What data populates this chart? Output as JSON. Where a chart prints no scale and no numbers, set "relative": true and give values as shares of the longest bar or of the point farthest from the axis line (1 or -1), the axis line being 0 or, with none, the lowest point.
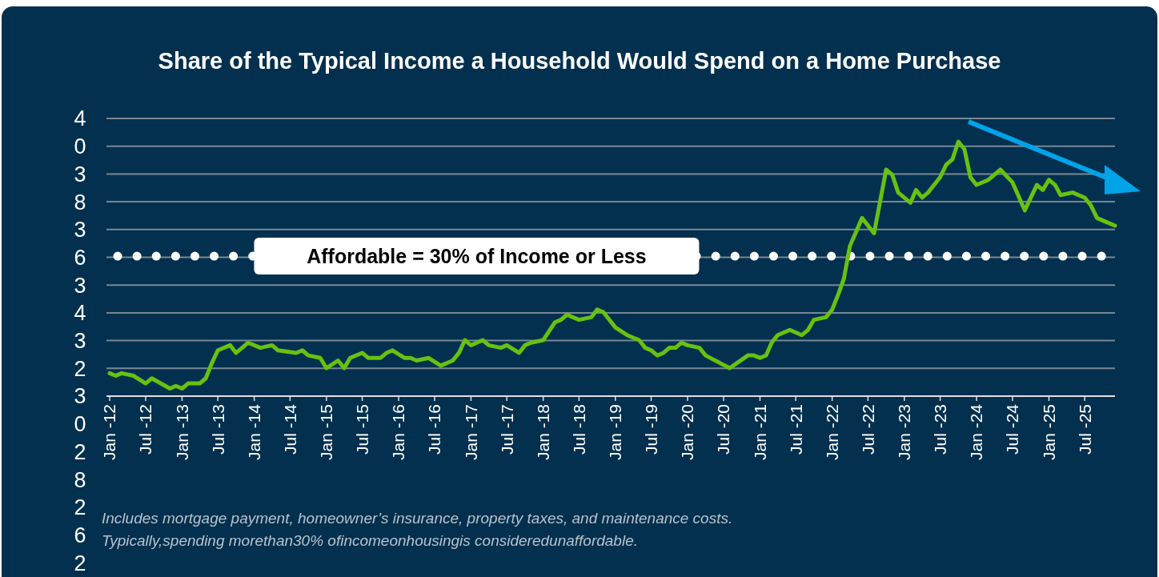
{
  "chart_data": {
    "type": "line",
    "title": "Share of the Typical Income a Household Would Spend on a Home Purchase",
    "x": [
      "2012-01",
      "2012-02",
      "2012-03",
      "2012-05",
      "2012-07",
      "2012-08",
      "2012-11",
      "2012-12",
      "2013-01",
      "2013-02",
      "2013-03",
      "2013-04",
      "2013-05",
      "2013-06",
      "2013-07",
      "2013-09",
      "2013-10",
      "2013-11",
      "2013-12",
      "2014-02",
      "2014-04",
      "2014-05",
      "2014-08",
      "2014-09",
      "2014-10",
      "2014-12",
      "2015-01",
      "2015-03",
      "2015-04",
      "2015-05",
      "2015-07",
      "2015-08",
      "2015-09",
      "2015-10",
      "2015-11",
      "2015-12",
      "2016-02",
      "2016-03",
      "2016-04",
      "2016-06",
      "2016-08",
      "2016-10",
      "2016-11",
      "2016-12",
      "2017-01",
      "2017-03",
      "2017-04",
      "2017-06",
      "2017-07",
      "2017-09",
      "2017-10",
      "2017-11",
      "2018-01",
      "2018-03",
      "2018-04",
      "2018-05",
      "2018-07",
      "2018-09",
      "2018-10",
      "2018-11",
      "2019-01",
      "2019-03",
      "2019-05",
      "2019-06",
      "2019-07",
      "2019-08",
      "2019-09",
      "2019-10",
      "2019-11",
      "2019-12",
      "2020-01",
      "2020-03",
      "2020-04",
      "2020-08",
      "2020-11",
      "2020-12",
      "2021-01",
      "2021-02",
      "2021-03",
      "2021-04",
      "2021-06",
      "2021-08",
      "2021-09",
      "2021-10",
      "2021-12",
      "2022-01",
      "2022-02",
      "2022-03",
      "2022-04",
      "2022-06",
      "2022-08",
      "2022-10",
      "2022-11",
      "2022-12",
      "2023-02",
      "2023-03",
      "2023-04",
      "2023-05",
      "2023-07",
      "2023-08",
      "2023-09",
      "2023-10",
      "2023-11",
      "2023-12",
      "2024-01",
      "2024-03",
      "2024-05",
      "2024-07",
      "2024-09",
      "2024-11",
      "2024-12",
      "2025-01",
      "2025-02",
      "2025-03",
      "2025-05",
      "2025-07",
      "2025-08",
      "2025-09",
      "2025-10",
      "2025-12"
    ],
    "relative": true,
    "series": [
      {
        "color": "#66c210",
        "values": [
          0.09,
          0.08,
          0.09,
          0.08,
          0.05,
          0.07,
          0.03,
          0.04,
          0.03,
          0.05,
          0.05,
          0.05,
          0.07,
          0.13,
          0.18,
          0.2,
          0.17,
          0.19,
          0.21,
          0.19,
          0.2,
          0.18,
          0.17,
          0.18,
          0.16,
          0.15,
          0.11,
          0.14,
          0.11,
          0.15,
          0.17,
          0.15,
          0.15,
          0.15,
          0.17,
          0.18,
          0.15,
          0.15,
          0.14,
          0.15,
          0.12,
          0.14,
          0.17,
          0.22,
          0.2,
          0.22,
          0.2,
          0.19,
          0.2,
          0.17,
          0.2,
          0.21,
          0.22,
          0.29,
          0.3,
          0.32,
          0.3,
          0.31,
          0.34,
          0.33,
          0.27,
          0.24,
          0.22,
          0.19,
          0.18,
          0.16,
          0.17,
          0.19,
          0.19,
          0.21,
          0.2,
          0.19,
          0.16,
          0.11,
          0.16,
          0.16,
          0.15,
          0.16,
          0.21,
          0.24,
          0.26,
          0.24,
          0.26,
          0.3,
          0.31,
          0.34,
          0.4,
          0.46,
          0.59,
          0.7,
          0.64,
          0.89,
          0.87,
          0.8,
          0.76,
          0.81,
          0.78,
          0.8,
          0.86,
          0.91,
          0.93,
          1,
          0.97,
          0.86,
          0.83,
          0.85,
          0.89,
          0.84,
          0.73,
          0.83,
          0.81,
          0.85,
          0.83,
          0.79,
          0.8,
          0.78,
          0.75,
          0.7,
          0.69,
          0.67
        ]
      }
    ],
    "xlim": [
      "2012-01",
      "2025-12"
    ],
    "xticks": [
      {
        "value": "2012-01",
        "label": "Jan -12"
      },
      {
        "value": "2012-07",
        "label": "Jul -12"
      },
      {
        "value": "2013-01",
        "label": "Jan -13"
      },
      {
        "value": "2013-07",
        "label": "Jul -13"
      },
      {
        "value": "2014-01",
        "label": "Jan -14"
      },
      {
        "value": "2014-07",
        "label": "Jul -14"
      },
      {
        "value": "2015-01",
        "label": "Jan -15"
      },
      {
        "value": "2015-07",
        "label": "Jul -15"
      },
      {
        "value": "2016-01",
        "label": "Jan -16"
      },
      {
        "value": "2016-07",
        "label": "Jul -16"
      },
      {
        "value": "2017-01",
        "label": "Jan -17"
      },
      {
        "value": "2017-07",
        "label": "Jul -17"
      },
      {
        "value": "2018-01",
        "label": "Jan -18"
      },
      {
        "value": "2018-07",
        "label": "Jul -18"
      },
      {
        "value": "2019-01",
        "label": "Jan -19"
      },
      {
        "value": "2019-07",
        "label": "Jul -19"
      },
      {
        "value": "2020-01",
        "label": "Jan -20"
      },
      {
        "value": "2020-07",
        "label": "Jul -20"
      },
      {
        "value": "2021-01",
        "label": "Jan -21"
      },
      {
        "value": "2021-07",
        "label": "Jul -21"
      },
      {
        "value": "2022-01",
        "label": "Jan -22"
      },
      {
        "value": "2022-07",
        "label": "Jul -22"
      },
      {
        "value": "2023-01",
        "label": "Jan -23"
      },
      {
        "value": "2023-07",
        "label": "Jul -23"
      },
      {
        "value": "2024-01",
        "label": "Jan -24"
      },
      {
        "value": "2024-07",
        "label": "Jul -24"
      },
      {
        "value": "2025-01",
        "label": "Jan -25"
      },
      {
        "value": "2025-07",
        "label": "Jul -25"
      }
    ],
    "grid": "y",
    "ref_lines": [
      {
        "axis": "y",
        "value": 0.55,
        "color": "#ffffff",
        "line_style": "dotted"
      }
    ],
    "annotations": [
      "Affordable = 30% of Income or Less",
      "Includes mortgage payment, homeowner’s insurance, property taxes, and maintenance costs.",
      "Typically,spending morethan30% ofincomeonhousingis consideredunaffordable.",
      "4",
      "0",
      "3",
      "8",
      "3",
      "6",
      "3",
      "4",
      "3",
      "2",
      "3",
      "0",
      "2",
      "8",
      "2",
      "6",
      "2"
    ]
  }
}
